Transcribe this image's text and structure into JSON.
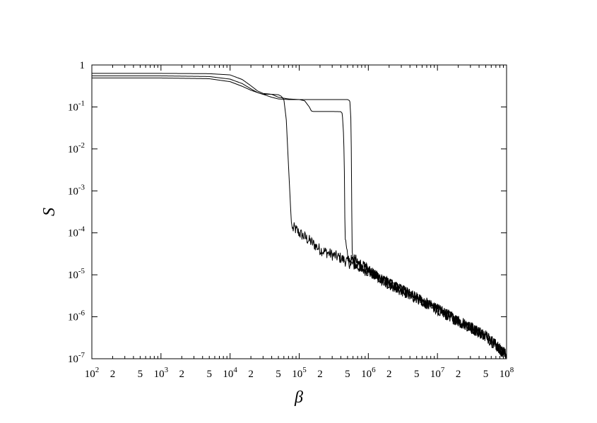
{
  "chart_data": {
    "type": "line",
    "title": "",
    "xlabel": "β",
    "ylabel": "S",
    "x_scale": "log",
    "y_scale": "log",
    "xlim": [
      100,
      100000000
    ],
    "ylim": [
      1e-07,
      1
    ],
    "grid": false,
    "legend": "none",
    "line_color": "#000000",
    "x_major_ticks": [
      {
        "value": 100,
        "base": "10",
        "exp": "2"
      },
      {
        "value": 1000,
        "base": "10",
        "exp": "3"
      },
      {
        "value": 10000,
        "base": "10",
        "exp": "4"
      },
      {
        "value": 100000,
        "base": "10",
        "exp": "5"
      },
      {
        "value": 1000000,
        "base": "10",
        "exp": "6"
      },
      {
        "value": 10000000,
        "base": "10",
        "exp": "7"
      },
      {
        "value": 100000000,
        "base": "10",
        "exp": "8"
      }
    ],
    "x_minor_labels": [
      {
        "value": 200,
        "label": "2"
      },
      {
        "value": 500,
        "label": "5"
      },
      {
        "value": 2000,
        "label": "2"
      },
      {
        "value": 5000,
        "label": "5"
      },
      {
        "value": 20000,
        "label": "2"
      },
      {
        "value": 50000,
        "label": "5"
      },
      {
        "value": 200000,
        "label": "2"
      },
      {
        "value": 500000,
        "label": "5"
      },
      {
        "value": 2000000,
        "label": "2"
      },
      {
        "value": 5000000,
        "label": "5"
      },
      {
        "value": 20000000,
        "label": "2"
      },
      {
        "value": 50000000,
        "label": "5"
      }
    ],
    "y_ticks": [
      {
        "value": 1,
        "base": "1",
        "exp": ""
      },
      {
        "value": 0.1,
        "base": "10",
        "exp": "-1"
      },
      {
        "value": 0.01,
        "base": "10",
        "exp": "-2"
      },
      {
        "value": 0.001,
        "base": "10",
        "exp": "-3"
      },
      {
        "value": 0.0001,
        "base": "10",
        "exp": "-4"
      },
      {
        "value": 1e-05,
        "base": "10",
        "exp": "-5"
      },
      {
        "value": 1e-06,
        "base": "10",
        "exp": "-6"
      },
      {
        "value": 1e-07,
        "base": "10",
        "exp": "-7"
      }
    ],
    "series": [
      {
        "x": [
          100,
          1000,
          5000,
          10000,
          15000,
          20000,
          25000,
          30000,
          40000,
          50000,
          55000,
          60000,
          65000,
          70000,
          73000,
          75000,
          77000,
          80000,
          85000,
          100000,
          150000,
          200000,
          300000,
          400000,
          500000,
          1000000,
          2000000,
          5000000,
          10000000,
          20000000,
          50000000,
          100000000
        ],
        "y": [
          0.49,
          0.49,
          0.47,
          0.4,
          0.31,
          0.25,
          0.22,
          0.2,
          0.2,
          0.195,
          0.18,
          0.15,
          0.05,
          0.004,
          0.001,
          0.0004,
          0.00018,
          0.00012,
          0.00013,
          0.0001,
          6e-05,
          4e-05,
          3e-05,
          2.5e-05,
          2e-05,
          1.2e-05,
          6e-06,
          2.8e-06,
          1.5e-06,
          8e-07,
          3.5e-07,
          1.2e-07
        ],
        "noise_from": 80000
      },
      {
        "x": [
          100,
          1000,
          5000,
          10000,
          15000,
          20000,
          25000,
          30000,
          40000,
          50000,
          70000,
          100000,
          120000,
          140000,
          150000,
          160000,
          200000,
          300000,
          400000,
          420000,
          440000,
          450000,
          460000,
          500000,
          1000000,
          2000000,
          5000000,
          10000000,
          20000000,
          50000000,
          100000000
        ],
        "y": [
          0.55,
          0.55,
          0.53,
          0.46,
          0.36,
          0.27,
          0.22,
          0.2,
          0.17,
          0.155,
          0.15,
          0.15,
          0.14,
          0.1,
          0.08,
          0.078,
          0.078,
          0.078,
          0.077,
          0.07,
          0.02,
          0.003,
          8e-05,
          2.5e-05,
          1.3e-05,
          6e-06,
          2.8e-06,
          1.5e-06,
          8e-07,
          3.5e-07,
          1.2e-07
        ],
        "noise_from": 460000
      },
      {
        "x": [
          100,
          1000,
          5000,
          10000,
          15000,
          20000,
          25000,
          30000,
          40000,
          50000,
          70000,
          100000,
          200000,
          400000,
          500000,
          540000,
          560000,
          570000,
          580000,
          600000,
          1000000,
          2000000,
          5000000,
          10000000,
          20000000,
          50000000,
          100000000
        ],
        "y": [
          0.63,
          0.63,
          0.62,
          0.58,
          0.45,
          0.32,
          0.24,
          0.21,
          0.2,
          0.17,
          0.155,
          0.15,
          0.15,
          0.15,
          0.15,
          0.14,
          0.05,
          0.005,
          5e-05,
          2.5e-05,
          1.3e-05,
          6e-06,
          2.8e-06,
          1.5e-06,
          8e-07,
          3.5e-07,
          1.2e-07
        ],
        "noise_from": 580000
      }
    ]
  }
}
